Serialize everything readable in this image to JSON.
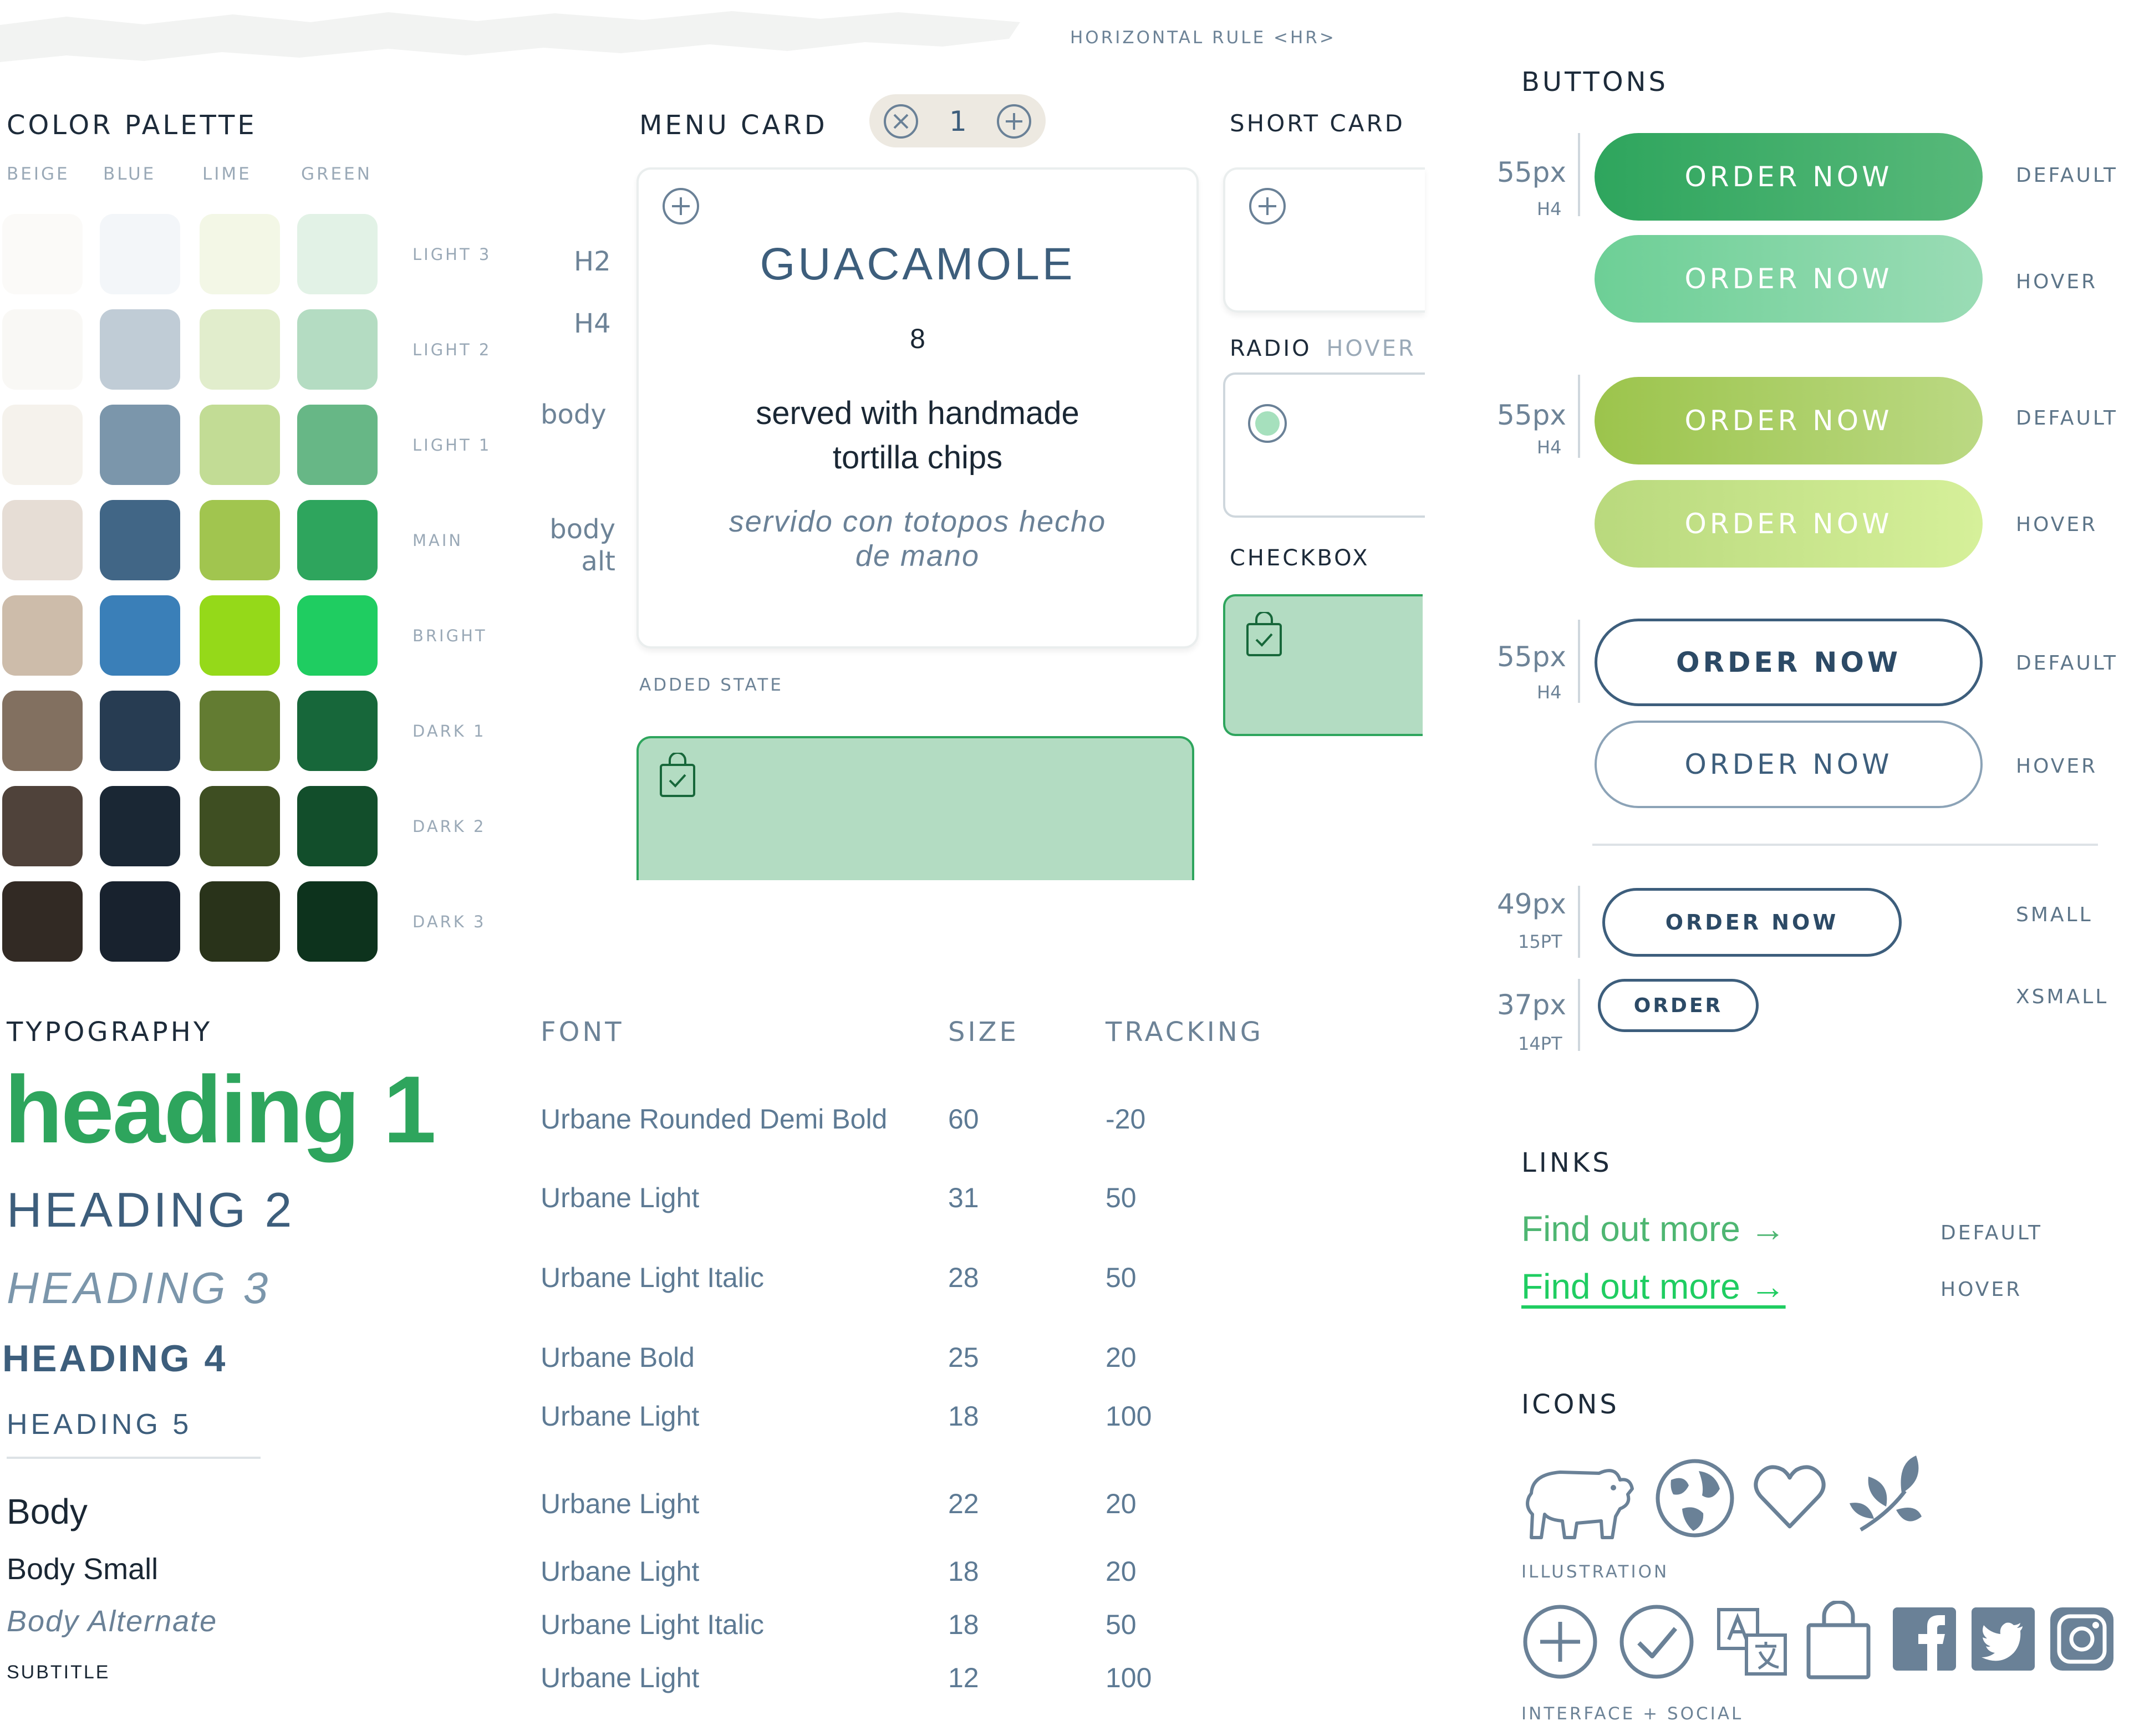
{
  "hr": {
    "label": "HORIZONTAL RULE <HR>"
  },
  "palette": {
    "title": "COLOR PALETTE",
    "columns": [
      "BEIGE",
      "BLUE",
      "LIME",
      "GREEN"
    ],
    "rows": [
      {
        "label": "LIGHT 3",
        "colors": [
          "#fbfaf8",
          "#f3f6f9",
          "#f3f7e6",
          "#e2f2e6"
        ]
      },
      {
        "label": "LIGHT 2",
        "colors": [
          "#f9f8f5",
          "#c0ccd6",
          "#e1edcc",
          "#b4dcc2"
        ]
      },
      {
        "label": "LIGHT 1",
        "colors": [
          "#f5f2ec",
          "#7b96ab",
          "#c2dc95",
          "#67b786"
        ]
      },
      {
        "label": "MAIN",
        "colors": [
          "#e6ddd5",
          "#416686",
          "#a1c54f",
          "#2ea55d"
        ]
      },
      {
        "label": "BRIGHT",
        "colors": [
          "#cdbcaa",
          "#3a7fb8",
          "#95d919",
          "#1fcd61"
        ]
      },
      {
        "label": "DARK 1",
        "colors": [
          "#827060",
          "#273c52",
          "#637c32",
          "#17673a"
        ]
      },
      {
        "label": "DARK 2",
        "colors": [
          "#4f423a",
          "#1a2734",
          "#3e4e22",
          "#124e2b"
        ]
      },
      {
        "label": "DARK 3",
        "colors": [
          "#322a24",
          "#18222e",
          "#29331a",
          "#0d331d"
        ]
      }
    ]
  },
  "menu_card": {
    "title": "MENU CARD",
    "stepper_value": "1",
    "labels": {
      "h2": "H2",
      "h4": "H4",
      "body": "body",
      "body_alt": "body alt"
    },
    "name": "GUACAMOLE",
    "price": "8",
    "desc": "served with handmade tortilla chips",
    "desc_alt": "servido con totopos hecho de mano",
    "added_state": "ADDED STATE"
  },
  "short_card": {
    "title": "SHORT CARD",
    "radio_label": "RADIO",
    "radio_hover": "HOVER",
    "checkbox_label": "CHECKBOX"
  },
  "buttons": {
    "title": "BUTTONS",
    "groups": [
      {
        "size": "55px",
        "sub": "H4",
        "default_label": "ORDER NOW",
        "hover_label": "ORDER NOW",
        "state_default": "DEFAULT",
        "state_hover": "HOVER",
        "default_color": "#2ea55d",
        "hover_color": "#7ad09c"
      },
      {
        "size": "55px",
        "sub": "H4",
        "default_label": "ORDER NOW",
        "hover_label": "ORDER NOW",
        "state_default": "DEFAULT",
        "state_hover": "HOVER",
        "default_color": "#a1c54f",
        "hover_color": "#c8e089"
      },
      {
        "size": "55px",
        "sub": "H4",
        "default_label": "ORDER NOW",
        "hover_label": "ORDER NOW",
        "state_default": "DEFAULT",
        "state_hover": "HOVER",
        "default_color": "#ffffff",
        "hover_color": "#ffffff"
      }
    ],
    "small": {
      "size": "49px",
      "sub": "15PT",
      "label": "ORDER NOW",
      "state": "SMALL"
    },
    "xsmall": {
      "size": "37px",
      "sub": "14PT",
      "label": "ORDER",
      "state": "XSMALL"
    }
  },
  "typography": {
    "title": "TYPOGRAPHY",
    "headers": {
      "font": "FONT",
      "size": "SIZE",
      "tracking": "TRACKING"
    },
    "samples": {
      "h1": "heading 1",
      "h2": "HEADING 2",
      "h3": "HEADING 3",
      "h4": "HEADING 4",
      "h5": "HEADING 5",
      "body": "Body",
      "body_small": "Body Small",
      "body_alt": "Body Alternate",
      "subtitle": "SUBTITLE"
    },
    "rows": [
      {
        "font": "Urbane Rounded Demi Bold",
        "size": "60",
        "tracking": "-20"
      },
      {
        "font": "Urbane Light",
        "size": "31",
        "tracking": "50"
      },
      {
        "font": "Urbane Light Italic",
        "size": "28",
        "tracking": "50"
      },
      {
        "font": "Urbane Bold",
        "size": "25",
        "tracking": "20"
      },
      {
        "font": "Urbane Light",
        "size": "18",
        "tracking": "100"
      },
      {
        "font": "Urbane Light",
        "size": "22",
        "tracking": "20"
      },
      {
        "font": "Urbane Light",
        "size": "18",
        "tracking": "20"
      },
      {
        "font": "Urbane Light Italic",
        "size": "18",
        "tracking": "50"
      },
      {
        "font": "Urbane Light",
        "size": "12",
        "tracking": "100"
      }
    ]
  },
  "links": {
    "title": "LINKS",
    "default_text": "Find out more →",
    "hover_text": "Find out more →",
    "state_default": "DEFAULT",
    "state_hover": "HOVER"
  },
  "icons": {
    "title": "ICONS",
    "illustration_label": "ILLUSTRATION",
    "interface_label": "INTERFACE + SOCIAL",
    "illustration": [
      "pig-icon",
      "globe-icon",
      "heart-icon",
      "leaf-icon"
    ],
    "interface": [
      "plus-circle-icon",
      "check-circle-icon",
      "translate-icon",
      "bag-icon",
      "facebook-icon",
      "twitter-icon",
      "instagram-icon"
    ]
  }
}
